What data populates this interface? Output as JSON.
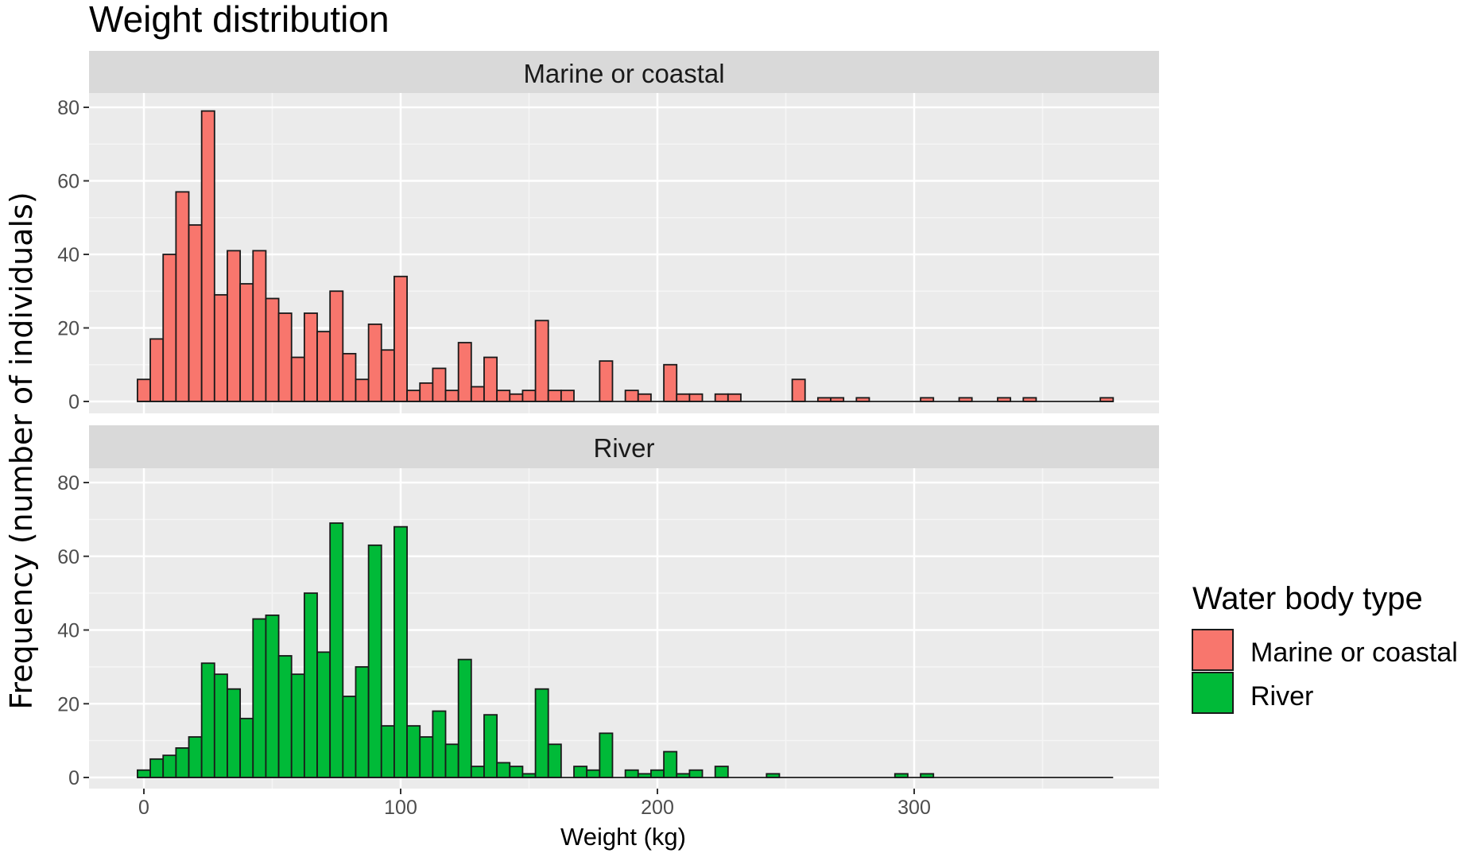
{
  "chart_data": {
    "type": "bar",
    "title": "Weight distribution",
    "xlabel": "Weight (kg)",
    "ylabel": "Frequency (number of individuals)",
    "bin_width": 5,
    "xlim": [
      -5,
      395
    ],
    "ylim": [
      0,
      80
    ],
    "x_ticks": [
      0,
      100,
      200,
      300
    ],
    "y_ticks": [
      0,
      20,
      40,
      60,
      80
    ],
    "grid": true,
    "legend": {
      "title": "Water body type",
      "placement": "right",
      "entries": [
        "Marine or coastal",
        "River"
      ]
    },
    "panels": [
      {
        "name": "Marine or coastal",
        "color": "#F8766D",
        "x": [
          0,
          5,
          10,
          15,
          20,
          25,
          30,
          35,
          40,
          45,
          50,
          55,
          60,
          65,
          70,
          75,
          80,
          85,
          90,
          95,
          100,
          105,
          110,
          115,
          120,
          125,
          130,
          135,
          140,
          145,
          150,
          155,
          160,
          165,
          170,
          175,
          180,
          185,
          190,
          195,
          200,
          205,
          210,
          215,
          220,
          225,
          230,
          235,
          240,
          245,
          250,
          255,
          260,
          265,
          270,
          275,
          280,
          285,
          290,
          295,
          300,
          305,
          310,
          315,
          320,
          325,
          330,
          335,
          340,
          345,
          350,
          355,
          360,
          365,
          370,
          375
        ],
        "values": [
          6,
          17,
          40,
          57,
          48,
          79,
          29,
          41,
          32,
          41,
          28,
          24,
          12,
          24,
          19,
          30,
          13,
          6,
          21,
          14,
          34,
          3,
          5,
          9,
          3,
          16,
          4,
          12,
          3,
          2,
          3,
          22,
          3,
          3,
          0,
          0,
          11,
          0,
          3,
          2,
          0,
          10,
          2,
          2,
          0,
          2,
          2,
          0,
          0,
          0,
          0,
          6,
          0,
          1,
          1,
          0,
          1,
          0,
          0,
          0,
          0,
          1,
          0,
          0,
          1,
          0,
          0,
          1,
          0,
          1,
          0,
          0,
          0,
          0,
          0,
          1
        ]
      },
      {
        "name": "River",
        "color": "#00BA38",
        "x": [
          0,
          5,
          10,
          15,
          20,
          25,
          30,
          35,
          40,
          45,
          50,
          55,
          60,
          65,
          70,
          75,
          80,
          85,
          90,
          95,
          100,
          105,
          110,
          115,
          120,
          125,
          130,
          135,
          140,
          145,
          150,
          155,
          160,
          165,
          170,
          175,
          180,
          185,
          190,
          195,
          200,
          205,
          210,
          215,
          220,
          225,
          230,
          235,
          240,
          245,
          250,
          255,
          260,
          265,
          270,
          275,
          280,
          285,
          290,
          295,
          300,
          305,
          310,
          315,
          320,
          325,
          330,
          335,
          340,
          345,
          350,
          355,
          360,
          365,
          370,
          375
        ],
        "values": [
          2,
          5,
          6,
          8,
          11,
          31,
          28,
          24,
          16,
          43,
          44,
          33,
          28,
          50,
          34,
          69,
          22,
          30,
          63,
          14,
          68,
          14,
          11,
          18,
          9,
          32,
          3,
          17,
          4,
          3,
          1,
          24,
          9,
          0,
          3,
          2,
          12,
          0,
          2,
          1,
          2,
          7,
          1,
          2,
          0,
          3,
          0,
          0,
          0,
          1,
          0,
          0,
          0,
          0,
          0,
          0,
          0,
          0,
          0,
          1,
          0,
          1,
          0,
          0,
          0,
          0,
          0,
          0,
          0,
          0,
          0,
          0,
          0,
          0,
          0,
          0
        ]
      }
    ]
  }
}
